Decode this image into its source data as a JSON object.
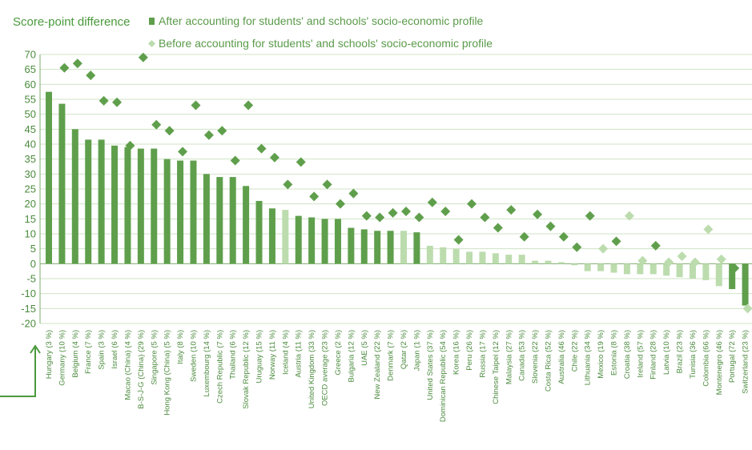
{
  "chart_data": {
    "type": "bar",
    "ylabel": "Score-point difference",
    "ylim": [
      -20,
      70
    ],
    "yticks": [
      70,
      65,
      60,
      55,
      50,
      45,
      40,
      35,
      30,
      25,
      20,
      15,
      10,
      5,
      0,
      -5,
      -10,
      -15,
      -20
    ],
    "grid": true,
    "legend_position": "top-left",
    "categories": [
      "Hungary (3 %)",
      "Germany (10 %)",
      "Belgium (4 %)",
      "France (7 %)",
      "Spain (3 %)",
      "Israel (6 %)",
      "Macao (China) (4 %)",
      "B-S-J-G (China) (29 %)",
      "Singapore (5 %)",
      "Hong Kong (China) (5 %)",
      "Italy (8 %)",
      "Sweden (10 %)",
      "Luxembourg (14 %)",
      "Czech Republic (7 %)",
      "Thailand (6 %)",
      "Slovak Republic (12 %)",
      "Uruguay (15 %)",
      "Norway (11 %)",
      "Iceland (4 %)",
      "Austria (11 %)",
      "United Kingdom (33 %)",
      "OECD average (23 %)",
      "Greece (2 %)",
      "Bulgaria (12 %)",
      "UAE (5 %)",
      "New Zealand (22 %)",
      "Denmark (7 %)",
      "Qatar (2 %)",
      "Japan (1 %)",
      "United States (37 %)",
      "Dominican Republic (54 %)",
      "Korea (16 %)",
      "Peru (26 %)",
      "Russia (17 %)",
      "Chinese Taipei (12 %)",
      "Malaysia (27 %)",
      "Canada (53 %)",
      "Slovenia (22 %)",
      "Costa Rica (52 %)",
      "Australia (46 %)",
      "Chile (22 %)",
      "Lithuania (34 %)",
      "Mexico (19 %)",
      "Estonia (8 %)",
      "Croatia (38 %)",
      "Ireland (57 %)",
      "Finland (28 %)",
      "Latvia (10 %)",
      "Brazil (23 %)",
      "Tunisia (36 %)",
      "Colombia (66 %)",
      "Montenegro (46 %)",
      "Portugal (72 %)",
      "Switzerland (23 %)"
    ],
    "series": [
      {
        "name": "After accounting for students' and schools' socio-economic profile",
        "marker": "bar",
        "values": [
          57.5,
          53.5,
          45,
          41.5,
          41.5,
          39.5,
          39,
          38.5,
          38.5,
          35,
          34.5,
          34.5,
          30,
          29,
          29,
          26,
          21,
          18.5,
          18,
          16,
          15.5,
          15,
          15,
          12,
          11.5,
          11,
          11,
          11,
          10.5,
          6,
          5.5,
          5,
          4,
          4,
          3.5,
          3,
          3,
          1,
          1,
          0.5,
          -0.5,
          -2.5,
          -2.5,
          -3,
          -3.5,
          -3.5,
          -3.5,
          -4,
          -4.5,
          -5,
          -5.5,
          -7.5,
          -8.5,
          -14
        ]
      },
      {
        "name": "Before accounting for students' and schools' socio-economic profile",
        "marker": "diamond",
        "values": [
          null,
          65.5,
          67,
          63,
          54.5,
          54,
          39.5,
          69,
          46.5,
          44.5,
          37.5,
          53,
          43,
          44.5,
          34.5,
          53,
          38.5,
          35.5,
          26.5,
          34,
          22.5,
          26.5,
          20,
          23.5,
          16,
          15.5,
          17,
          17.5,
          15.5,
          20.5,
          17.5,
          8,
          20,
          15.5,
          12,
          18,
          9,
          16.5,
          12.5,
          9,
          5.5,
          16,
          5,
          7.5,
          16,
          1,
          6,
          0.5,
          2.5,
          0.5,
          11.5,
          1.5,
          -1.5,
          -15
        ]
      }
    ],
    "significant_after": [
      true,
      true,
      true,
      true,
      true,
      true,
      true,
      true,
      true,
      true,
      true,
      true,
      true,
      true,
      true,
      true,
      true,
      true,
      false,
      true,
      true,
      true,
      true,
      true,
      true,
      true,
      true,
      false,
      true,
      false,
      false,
      false,
      false,
      false,
      false,
      false,
      false,
      false,
      false,
      false,
      false,
      false,
      false,
      false,
      false,
      false,
      false,
      false,
      false,
      false,
      false,
      false,
      true,
      true
    ],
    "significant_before": [
      true,
      true,
      true,
      true,
      true,
      true,
      true,
      true,
      true,
      true,
      true,
      true,
      true,
      true,
      true,
      true,
      true,
      true,
      true,
      true,
      true,
      true,
      true,
      true,
      true,
      true,
      true,
      true,
      true,
      true,
      true,
      true,
      true,
      true,
      true,
      true,
      true,
      true,
      true,
      true,
      true,
      true,
      false,
      true,
      false,
      false,
      true,
      false,
      false,
      false,
      false,
      false,
      true,
      false
    ]
  },
  "colors": {
    "significant": "#5f9f4c",
    "not_significant": "#bcdcae",
    "grid": "#cfe3c6",
    "axis": "#7fae6c",
    "text": "#4a8a3c"
  }
}
